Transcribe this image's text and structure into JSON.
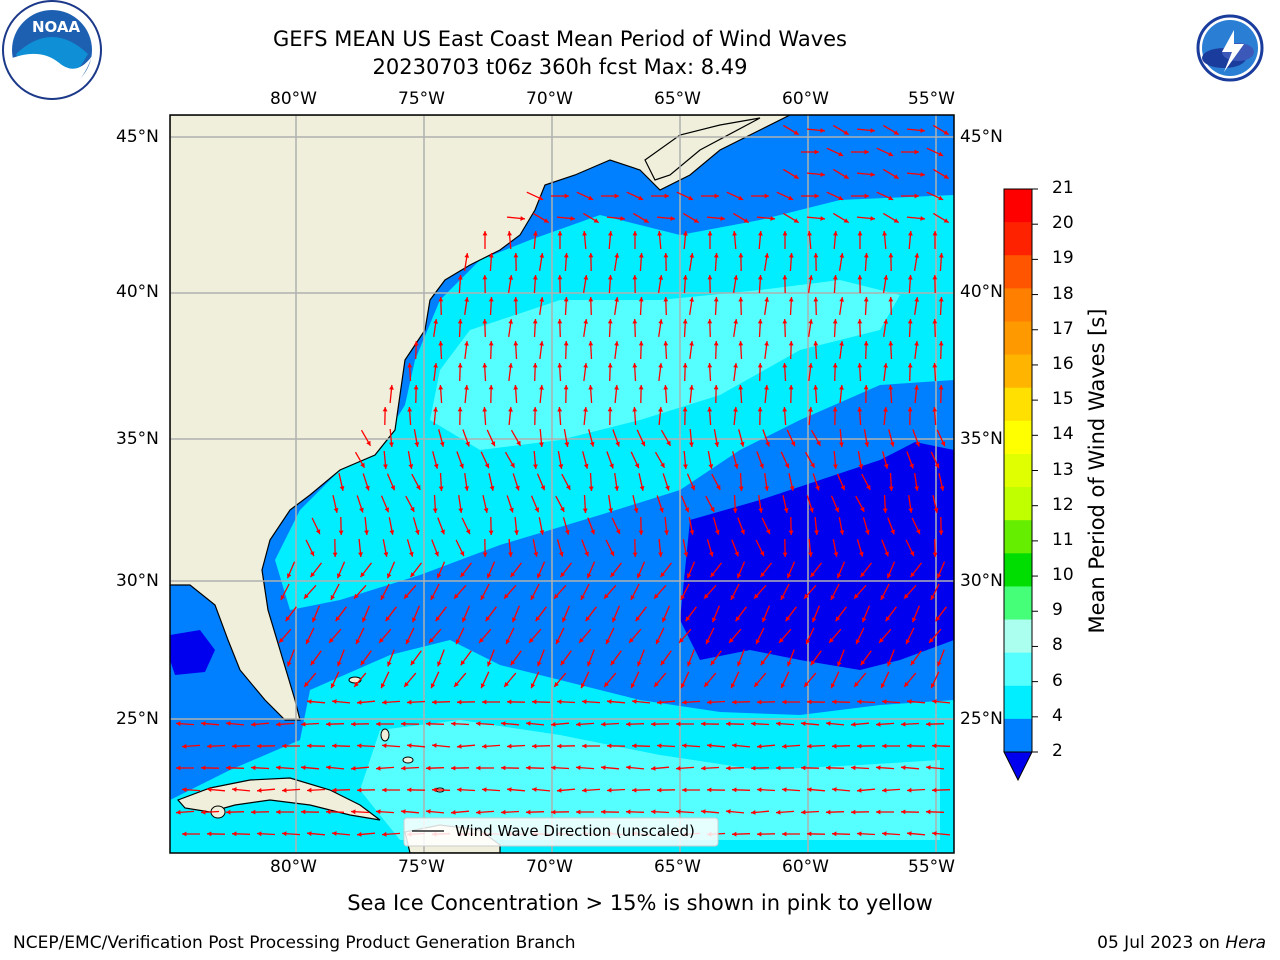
{
  "title": {
    "line1": "GEFS MEAN US East Coast Mean Period of Wind Waves",
    "line2": "20230703 t06z 360h fcst   Max: 8.49"
  },
  "logos": {
    "noaa": "NOAA",
    "nws": "NATIONAL WEATHER SERVICE"
  },
  "axes": {
    "lon_labels": [
      "80°W",
      "75°W",
      "70°W",
      "65°W",
      "60°W",
      "55°W"
    ],
    "lat_labels": [
      "45°N",
      "40°N",
      "35°N",
      "30°N",
      "25°N"
    ]
  },
  "legend": {
    "label": "Wind Wave Direction (unscaled)"
  },
  "colorbar": {
    "title": "Mean Period of Wind Waves [s]",
    "ticks": [
      "21",
      "20",
      "19",
      "18",
      "17",
      "16",
      "15",
      "14",
      "13",
      "12",
      "11",
      "10",
      "9",
      "8",
      "6",
      "4",
      "2"
    ],
    "colors": [
      "#ff0000",
      "#ff2200",
      "#ff5500",
      "#ff7f00",
      "#ff9900",
      "#ffb400",
      "#ffe000",
      "#ffff00",
      "#e0ff00",
      "#c0ff00",
      "#66ee00",
      "#00dd00",
      "#44ff77",
      "#aaffee",
      "#55ffff",
      "#00eeff",
      "#0080ff",
      "#0000ee"
    ]
  },
  "colors": {
    "land": "#efefdb",
    "period_2_4": "#0080ff",
    "period_4_6": "#00eeff",
    "period_6_8": "#55ffff",
    "period_below_2": "#0000ee",
    "arrow": "#ff0000"
  },
  "footer": {
    "sea_ice_note": "Sea Ice Concentration > 15% is shown in pink to yellow",
    "credit": "NCEP/EMC/Verification Post Processing Product Generation Branch",
    "date": "05 Jul 2023 on ",
    "host": "Hera"
  }
}
